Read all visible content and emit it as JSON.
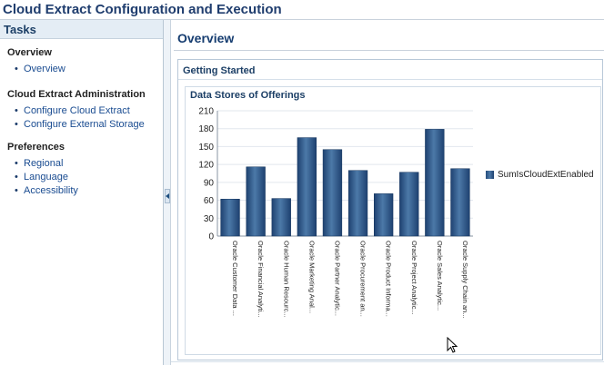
{
  "window": {
    "title": "Cloud Extract Configuration and Execution"
  },
  "tasks": {
    "header": "Tasks",
    "sections": [
      {
        "title": "Overview",
        "items": [
          {
            "label": "Overview"
          }
        ]
      },
      {
        "title": "Cloud Extract Administration",
        "items": [
          {
            "label": "Configure Cloud Extract"
          },
          {
            "label": "Configure External Storage"
          }
        ]
      },
      {
        "title": "Preferences",
        "items": [
          {
            "label": "Regional"
          },
          {
            "label": "Language"
          },
          {
            "label": "Accessibility"
          }
        ]
      }
    ]
  },
  "main": {
    "title": "Overview",
    "getting_started": "Getting Started"
  },
  "chart_data": {
    "type": "bar",
    "title": "Data Stores of Offerings",
    "categories": [
      "Oracle Customer Data ...",
      "Oracle Financial Analyti...",
      "Oracle Human Resourc...",
      "Oracle Marketing Anal...",
      "Oracle Partner Analytic...",
      "Oracle Procurement an...",
      "Oracle Product Informa...",
      "Oracle Project Analytic...",
      "Oracle Sales Analytic...",
      "Oracle Supply Chain an..."
    ],
    "series": [
      {
        "name": "SumIsCloudExtEnabled",
        "values": [
          62,
          116,
          63,
          165,
          145,
          110,
          71,
          107,
          179,
          113
        ]
      }
    ],
    "yticks": [
      0,
      30,
      60,
      90,
      120,
      150,
      180,
      210
    ],
    "ylim": [
      0,
      210
    ],
    "grid": true,
    "legend": "right",
    "colors": {
      "bar_dark": "#1e4170",
      "bar_light": "#4c79a8"
    }
  }
}
